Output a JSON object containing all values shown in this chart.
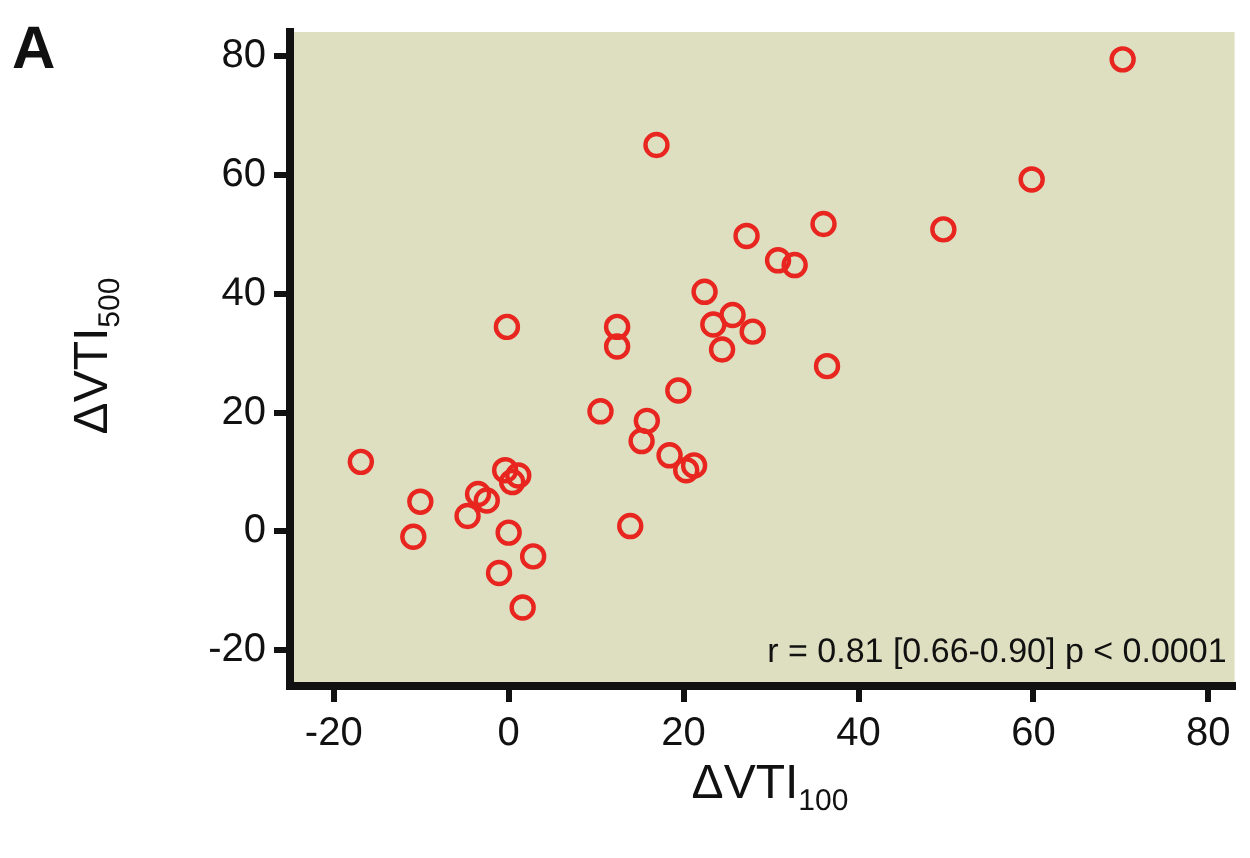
{
  "chart_data": {
    "type": "scatter",
    "title": "A",
    "xlabel": "ΔVTI$_{100}$",
    "ylabel": "ΔVTI$_{500}$",
    "annotations": [
      "r = 0.81 [0.66-0.90] p < 0.0001"
    ],
    "xlim": [
      -25,
      83
    ],
    "ylim": [
      -26,
      84
    ],
    "xticks": [
      -20,
      0,
      20,
      40,
      60,
      80
    ],
    "yticks": [
      -20,
      0,
      20,
      40,
      60,
      80
    ],
    "grid": false,
    "legend": false,
    "marker": "circle",
    "series": [
      {
        "color": "#e8251f",
        "x": [
          16.9,
          -0.2,
          12.4,
          12.4,
          -16.9,
          -10.1,
          -10.9,
          -3.5,
          -2.5,
          -4.7,
          -0.4,
          1.1,
          0.4,
          0,
          2.8,
          -1.1,
          1.6,
          10.5,
          19.4,
          15.8,
          15.2,
          18.4,
          20.3,
          21.2,
          13.9,
          22.4,
          23.4,
          25.6,
          27.9,
          24.4,
          27.2,
          30.8,
          32.7,
          70.2,
          59.8,
          49.7,
          36.0,
          36.4
        ],
        "values": [
          65,
          34.4,
          34.4,
          31.1,
          11.7,
          5,
          -0.9,
          6.3,
          5.2,
          2.6,
          10.3,
          9.4,
          8.3,
          -0.2,
          -4.2,
          -7,
          -12.8,
          20.2,
          23.7,
          18.6,
          15.2,
          12.8,
          10.3,
          11.1,
          0.9,
          40.3,
          34.8,
          36.4,
          33.6,
          30.6,
          49.7,
          45.6,
          44.8,
          79.4,
          59.2,
          50.8,
          51.7,
          27.8
        ]
      }
    ]
  }
}
